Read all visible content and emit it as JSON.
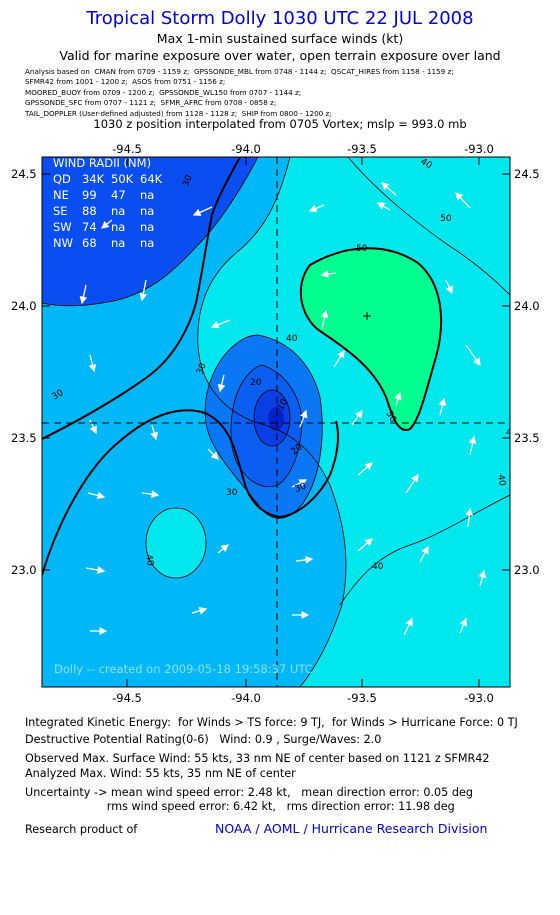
{
  "header": {
    "title": "Tropical Storm Dolly 1030 UTC 22 JUL 2008",
    "subtitle1": "Max 1-min sustained surface winds (kt)",
    "subtitle2": "Valid for marine exposure over water, open terrain exposure over land",
    "sources": [
      "Analysis based on  CMAN from 0709 - 1159 z;  GPSSONDE_MBL from 0748 - 1144 z;  QSCAT_HIRES from 1158 - 1159 z;",
      "SFMR42 from 1001 - 1200 z;  ASOS from 0751 - 1156 z;",
      "MOORED_BUOY from 0709 - 1200 z;  GPSSONDE_WL150 from 0707 - 1144 z;",
      "GPSSONDE_SFC from 0707 - 1121 z;  SFMR_AFRC from 0708 - 0858 z;",
      "TAIL_DOPPLER (User-defined adjusted) from 1128 - 1128 z;  SHIP from 0800 - 1200 z;"
    ],
    "position_line": "1030 z position interpolated from 0705 Vortex; mslp = 993.0 mb"
  },
  "map": {
    "x_ticks": [
      "-94.5",
      "-94.0",
      "-93.5",
      "-93.0"
    ],
    "y_ticks": [
      "24.5",
      "24.0",
      "23.5",
      "23.0"
    ],
    "contour_labels": [
      "50",
      "40",
      "30",
      "30",
      "30",
      "30",
      "40",
      "40",
      "40",
      "40",
      "40",
      "50",
      "50",
      "20",
      "10",
      "20",
      "30"
    ],
    "created_text": "Dolly -- created on 2009-05-18  19:58:37 UTC",
    "colors": {
      "band_lt30": "#0a4df0",
      "band_30_40": "#00b8f8",
      "band_40_50": "#00e8ee",
      "band_gt50": "#00ff90",
      "band_10_20": "#0a78f5",
      "core": "#0022c8"
    }
  },
  "wind_radii": {
    "title": "WIND RADII (NM)",
    "header": [
      "QD",
      "34K",
      "50K",
      "64K"
    ],
    "rows": [
      [
        "NE",
        "99",
        "47",
        "na"
      ],
      [
        "SE",
        "88",
        "na",
        "na"
      ],
      [
        "SW",
        "74",
        "na",
        "na"
      ],
      [
        "NW",
        "68",
        "na",
        "na"
      ]
    ]
  },
  "footer": {
    "ike": "Integrated Kinetic Energy:  for Winds > TS force: 9 TJ,  for Winds > Hurricane Force: 0 TJ",
    "dpr": "Destructive Potential Rating(0-6)   Wind: 0.9 , Surge/Waves: 2.0",
    "observed": "Observed Max. Surface Wind: 55 kts, 33 nm NE of center based on 1121 z SFMR42",
    "analyzed": "Analyzed Max. Wind: 55 kts, 35 nm NE of center",
    "uncert1": "Uncertainty -> mean wind speed error: 2.48 kt,   mean direction error: 0.05 deg",
    "uncert2": "                       rms wind speed error: 6.42 kt,   rms direction error: 11.98 deg",
    "research": "Research product of",
    "org": "NOAA / AOML / Hurricane Research Division"
  }
}
